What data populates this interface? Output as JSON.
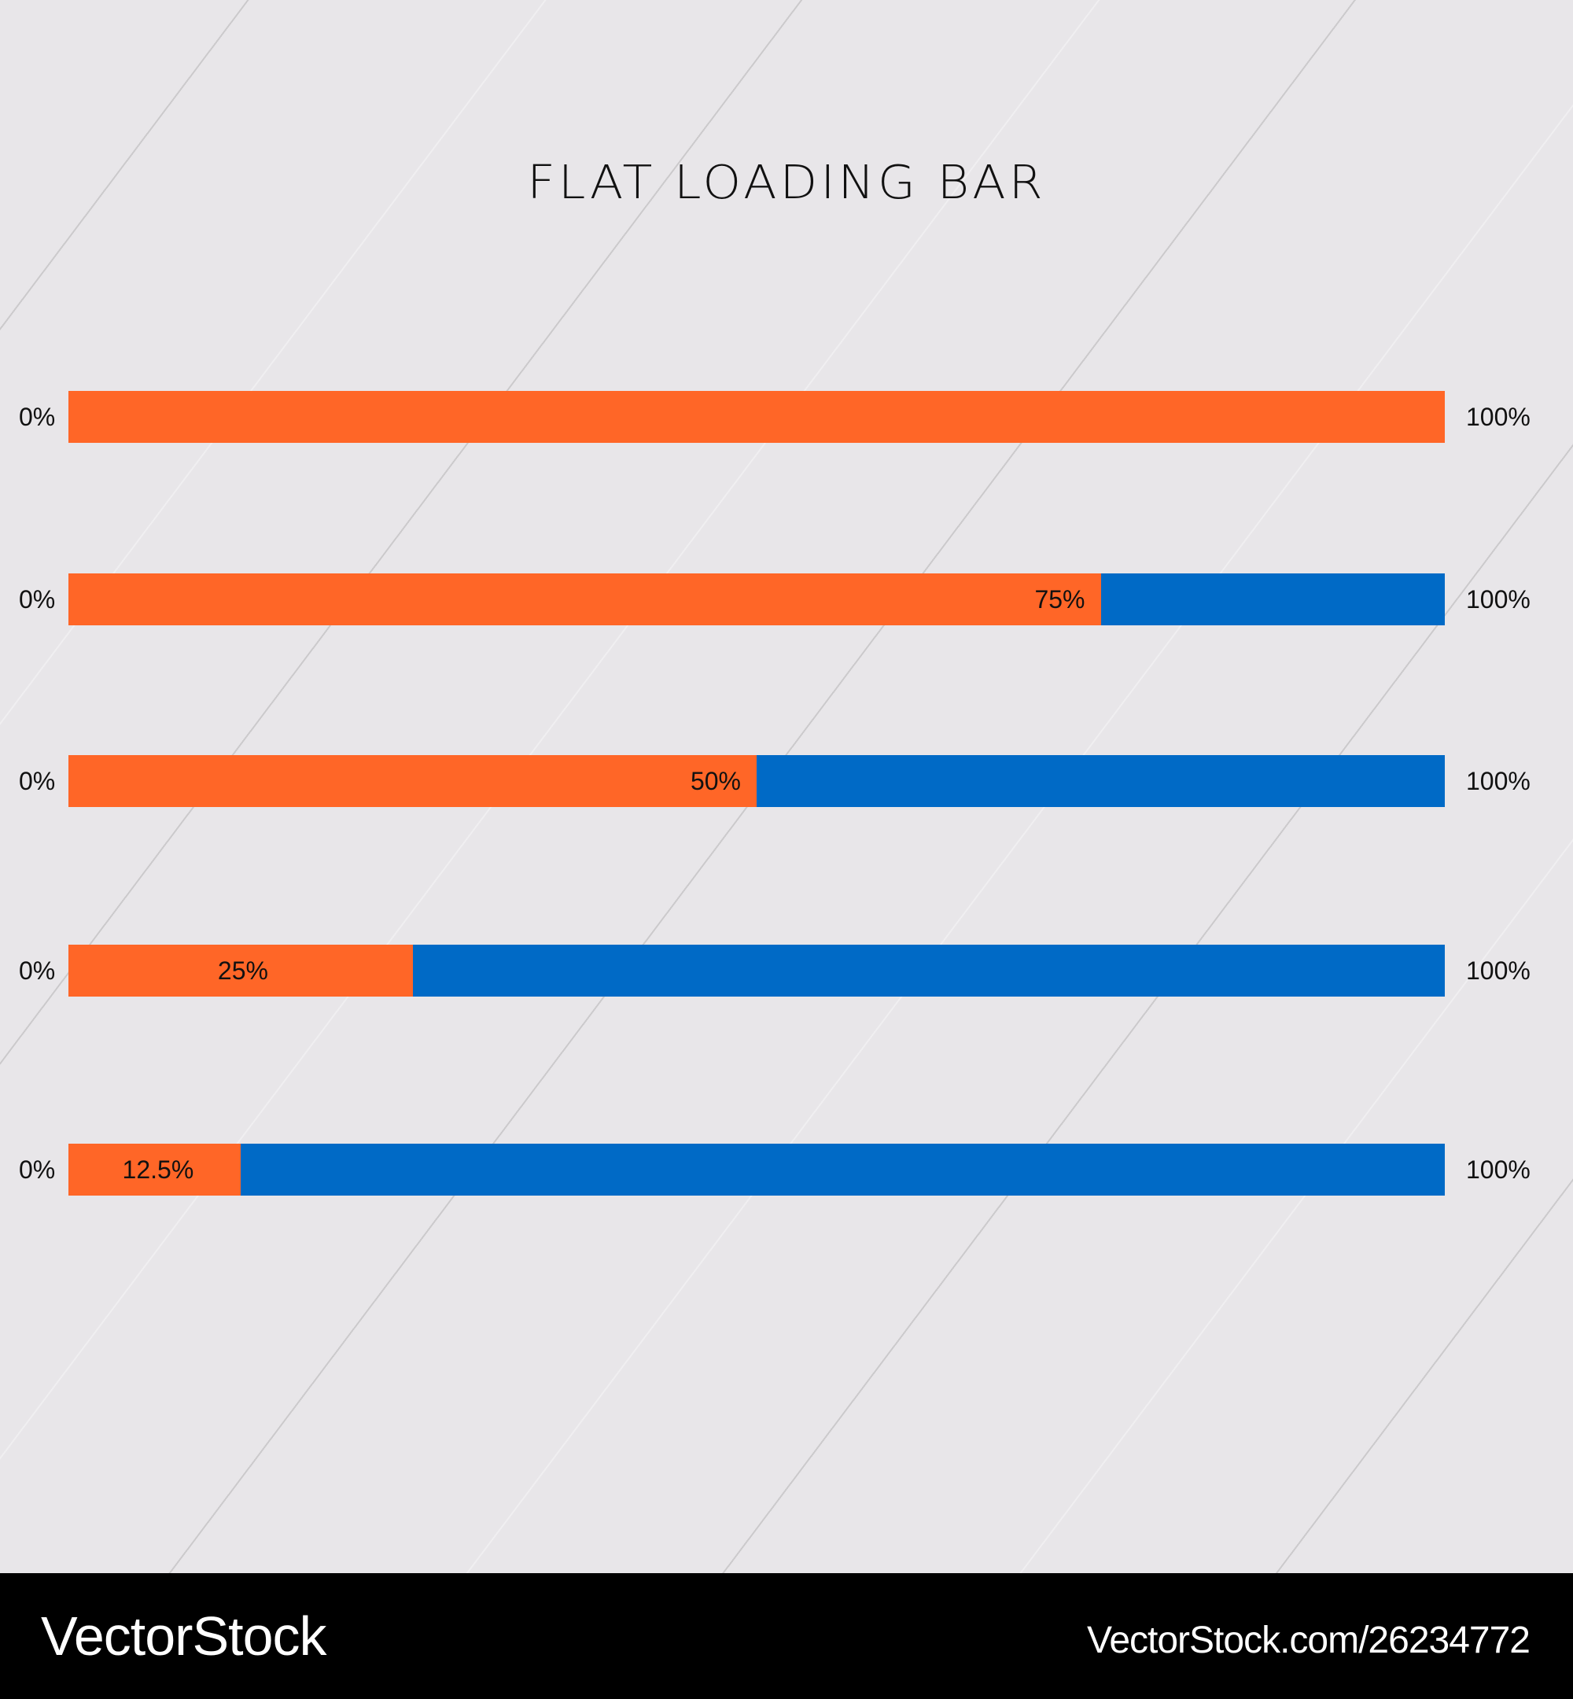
{
  "title": "FLAT LOADING BAR",
  "colors": {
    "fill": "#FF6627",
    "track": "#006AC6",
    "background": "#E8E6E9",
    "footer": "#000000"
  },
  "chart_data": {
    "type": "bar",
    "orientation": "horizontal",
    "title": "FLAT LOADING BAR",
    "min_label": "0%",
    "max_label": "100%",
    "xlim": [
      0,
      100
    ],
    "bars": [
      {
        "value": 100,
        "label": ""
      },
      {
        "value": 75,
        "label": "75%"
      },
      {
        "value": 50,
        "label": "50%"
      },
      {
        "value": 25,
        "label": "25%"
      },
      {
        "value": 12.5,
        "label": "12.5%"
      }
    ]
  },
  "watermark": "VectorStock",
  "footer": {
    "brand": "VectorStock",
    "url": "VectorStock.com/26234772"
  }
}
